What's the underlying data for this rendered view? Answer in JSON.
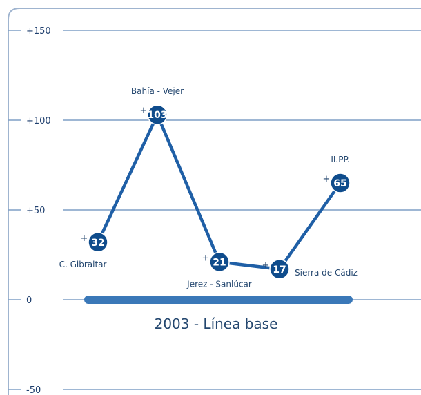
{
  "chart_data": {
    "type": "line",
    "ylim": [
      -50,
      150
    ],
    "yticks": [
      {
        "value": 150,
        "label": "+150"
      },
      {
        "value": 100,
        "label": "+100"
      },
      {
        "value": 50,
        "label": "+50"
      },
      {
        "value": 0,
        "label": "0"
      },
      {
        "value": -50,
        "label": "-50"
      }
    ],
    "points": [
      {
        "category": "C. Gibraltar",
        "value": 32,
        "label": "32",
        "prefix": "+",
        "label_position": "below"
      },
      {
        "category": "Bahía - Vejer",
        "value": 103,
        "label": "103",
        "prefix": "+",
        "label_position": "above"
      },
      {
        "category": "Jerez - Sanlúcar",
        "value": 21,
        "label": "21",
        "prefix": "+",
        "label_position": "below"
      },
      {
        "category": "Sierra de Cádiz",
        "value": 17,
        "label": "17",
        "prefix": "+",
        "label_position": "right"
      },
      {
        "category": "II.PP.",
        "value": 65,
        "label": "65",
        "prefix": "+",
        "label_position": "above"
      }
    ],
    "baseline": {
      "value": 0,
      "label": "2003 - Línea base"
    },
    "grid": true,
    "colors": {
      "line": "#1f5fa6",
      "marker": "#0f4c8c",
      "grid": "#7f9fc6",
      "frame": "#9fb4cf",
      "baseline": "#3a78b8"
    }
  }
}
